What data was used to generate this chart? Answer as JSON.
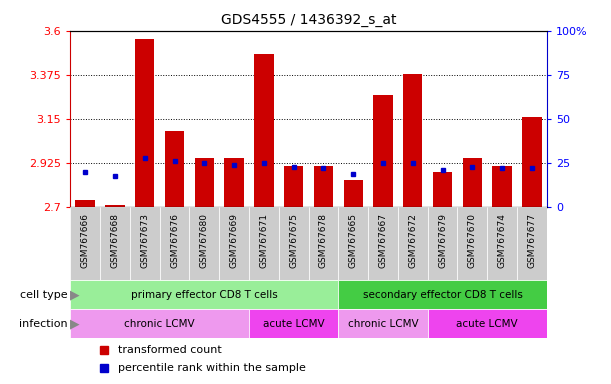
{
  "title": "GDS4555 / 1436392_s_at",
  "samples": [
    "GSM767666",
    "GSM767668",
    "GSM767673",
    "GSM767676",
    "GSM767680",
    "GSM767669",
    "GSM767671",
    "GSM767675",
    "GSM767678",
    "GSM767665",
    "GSM767667",
    "GSM767672",
    "GSM767679",
    "GSM767670",
    "GSM767674",
    "GSM767677"
  ],
  "red_values": [
    2.74,
    2.71,
    3.56,
    3.09,
    2.95,
    2.95,
    3.48,
    2.91,
    2.91,
    2.84,
    3.27,
    3.38,
    2.88,
    2.95,
    2.91,
    3.16
  ],
  "blue_values": [
    20,
    18,
    28,
    26,
    25,
    24,
    25,
    23,
    22,
    19,
    25,
    25,
    21,
    23,
    22,
    22
  ],
  "ymin": 2.7,
  "ymax": 3.6,
  "yticks": [
    2.7,
    2.925,
    3.15,
    3.375,
    3.6
  ],
  "ytick_labels": [
    "2.7",
    "2.925",
    "3.15",
    "3.375",
    "3.6"
  ],
  "y2min": 0,
  "y2max": 100,
  "y2ticks": [
    0,
    25,
    50,
    75,
    100
  ],
  "y2tick_labels": [
    "0",
    "25",
    "50",
    "75",
    "100%"
  ],
  "grid_lines": [
    2.925,
    3.15,
    3.375
  ],
  "bar_color": "#cc0000",
  "blue_color": "#0000cc",
  "cell_type_groups": [
    {
      "label": "primary effector CD8 T cells",
      "start": 0,
      "end": 9,
      "color": "#99ee99"
    },
    {
      "label": "secondary effector CD8 T cells",
      "start": 9,
      "end": 16,
      "color": "#44cc44"
    }
  ],
  "infection_groups": [
    {
      "label": "chronic LCMV",
      "start": 0,
      "end": 6,
      "color": "#ee99ee"
    },
    {
      "label": "acute LCMV",
      "start": 6,
      "end": 9,
      "color": "#ee44ee"
    },
    {
      "label": "chronic LCMV",
      "start": 9,
      "end": 12,
      "color": "#ee99ee"
    },
    {
      "label": "acute LCMV",
      "start": 12,
      "end": 16,
      "color": "#ee44ee"
    }
  ],
  "legend_red_label": "transformed count",
  "legend_blue_label": "percentile rank within the sample",
  "cell_type_label": "cell type",
  "infection_label": "infection",
  "xticklabel_bg": "#cccccc",
  "spine_color_left": "#cc0000",
  "spine_color_right": "#0000cc"
}
